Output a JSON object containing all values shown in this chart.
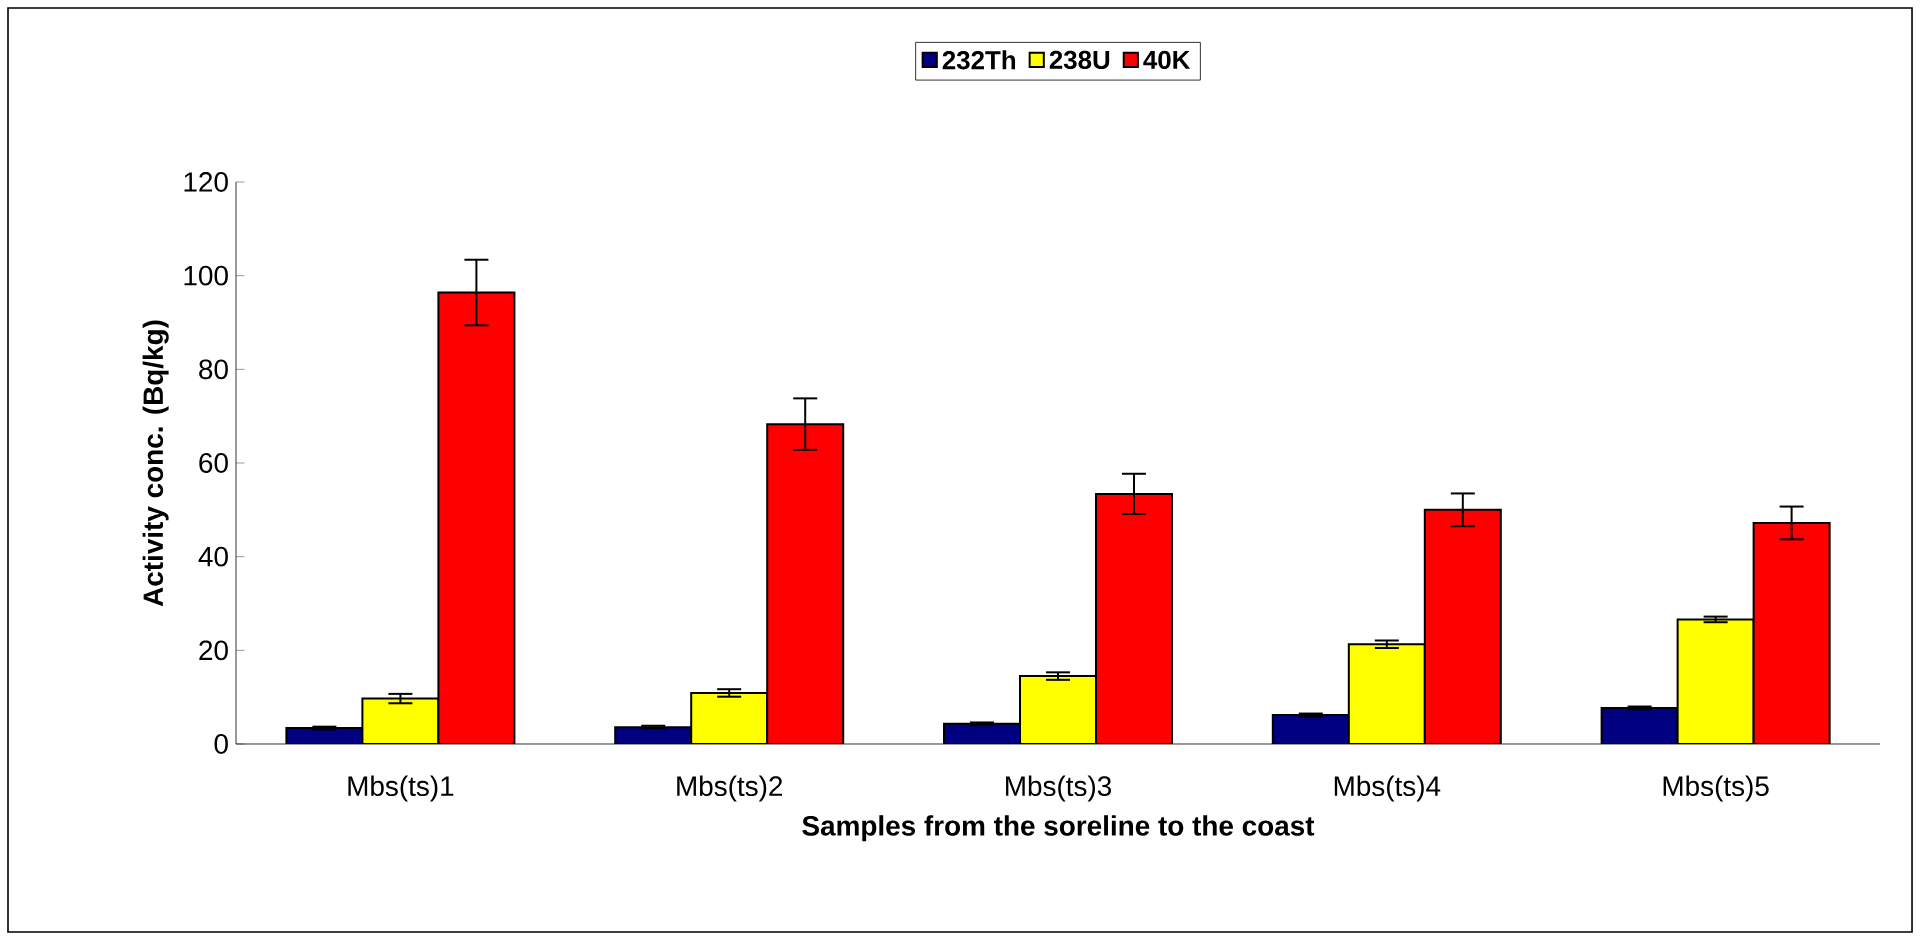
{
  "chart_data": {
    "type": "bar",
    "xlabel": "Samples from the soreline to the coast",
    "ylabel": "Activity conc. (Bq/kg)",
    "categories": [
      "Mbs(ts)1",
      "Mbs(ts)2",
      "Mbs(ts)3",
      "Mbs(ts)4",
      "Mbs(ts)5"
    ],
    "series": [
      {
        "name": "232Th",
        "color": "#000080",
        "values": [
          3.4,
          3.6,
          4.3,
          6.2,
          7.7
        ],
        "errors": [
          0.3,
          0.3,
          0.3,
          0.3,
          0.3
        ]
      },
      {
        "name": "238U",
        "color": "#ffff00",
        "values": [
          9.7,
          10.9,
          14.5,
          21.3,
          26.6
        ],
        "errors": [
          1.0,
          0.8,
          0.8,
          0.8,
          0.6
        ]
      },
      {
        "name": "40K",
        "color": "#ff0000",
        "values": [
          96.4,
          68.3,
          53.4,
          50.0,
          47.2
        ],
        "errors": [
          7.0,
          5.5,
          4.3,
          3.5,
          3.5
        ]
      }
    ],
    "ylim": [
      0,
      120
    ],
    "yticks": [
      0,
      20,
      40,
      60,
      80,
      100,
      120
    ],
    "grid": false,
    "legend": "top"
  }
}
